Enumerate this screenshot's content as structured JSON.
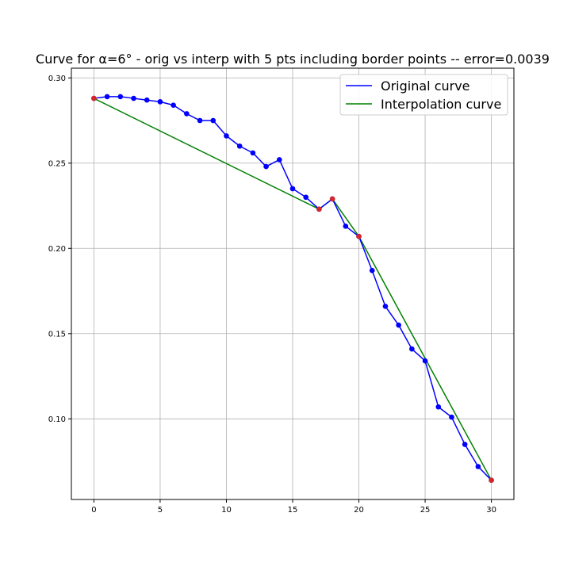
{
  "chart_data": {
    "type": "line",
    "title": "Curve for α=6° - orig vs interp with 5 pts including border points -- error=0.0039",
    "xlabel": "",
    "ylabel": "",
    "xlim": [
      -1.7,
      31.7
    ],
    "ylim": [
      0.0527,
      0.3057
    ],
    "x_ticks": [
      0,
      5,
      10,
      15,
      20,
      25,
      30
    ],
    "y_ticks": [
      0.1,
      0.15,
      0.2,
      0.25,
      0.3
    ],
    "y_tick_labels": [
      "0.10",
      "0.15",
      "0.20",
      "0.25",
      "0.30"
    ],
    "grid": true,
    "legend_position": "top-right",
    "series": [
      {
        "name": "Original curve",
        "color": "#0000ff",
        "marker_color": "#0000ff",
        "x": [
          0,
          1,
          2,
          3,
          4,
          5,
          6,
          7,
          8,
          9,
          10,
          11,
          12,
          13,
          14,
          15,
          16,
          17,
          18,
          19,
          20,
          21,
          22,
          23,
          24,
          25,
          26,
          27,
          28,
          29,
          30
        ],
        "y": [
          0.288,
          0.289,
          0.289,
          0.288,
          0.287,
          0.286,
          0.284,
          0.279,
          0.275,
          0.275,
          0.266,
          0.26,
          0.256,
          0.248,
          0.252,
          0.235,
          0.23,
          0.223,
          0.229,
          0.213,
          0.207,
          0.187,
          0.166,
          0.155,
          0.141,
          0.134,
          0.107,
          0.101,
          0.085,
          0.072,
          0.064
        ]
      },
      {
        "name": "Interpolation curve",
        "color": "#008000",
        "marker_color": "#d62728",
        "x": [
          0,
          17,
          18,
          20,
          30
        ],
        "y": [
          0.288,
          0.223,
          0.229,
          0.207,
          0.064
        ]
      }
    ]
  }
}
